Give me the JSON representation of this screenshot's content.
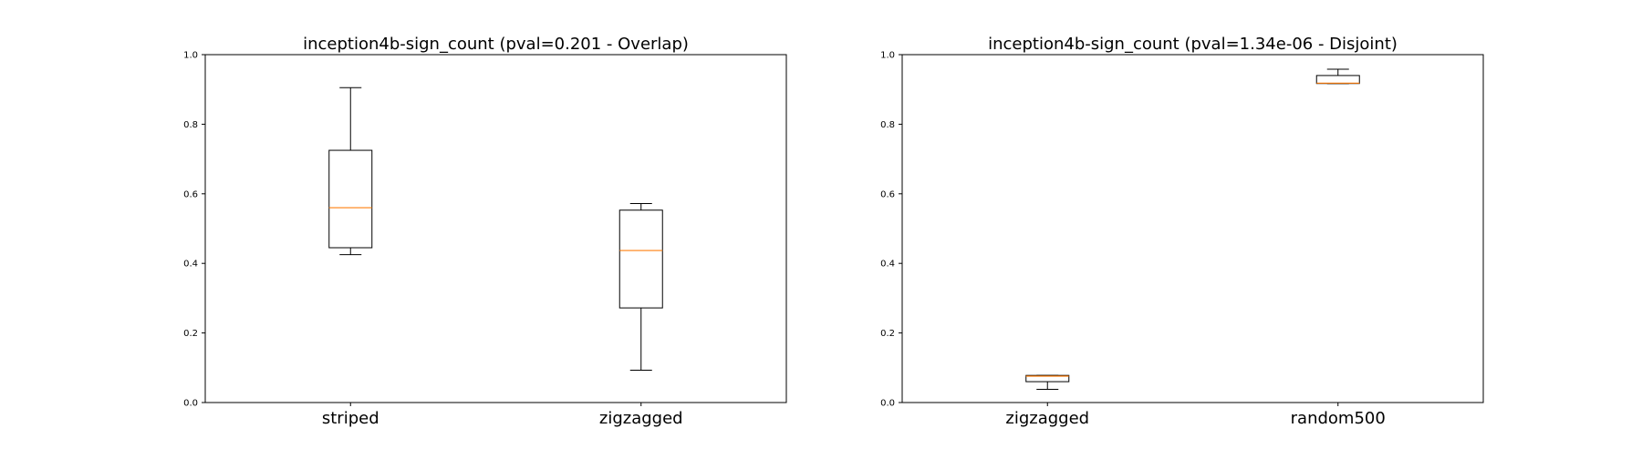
{
  "chart_data": [
    {
      "type": "boxplot",
      "title": "inception4b-sign_count (pval=0.201 - Overlap)",
      "xlabel": "",
      "ylabel": "",
      "ylim": [
        0,
        1
      ],
      "yticks": [
        "0.0",
        "0.2",
        "0.4",
        "0.6",
        "0.8",
        "1.0"
      ],
      "grid": false,
      "categories": [
        "striped",
        "zigzagged"
      ],
      "boxes": [
        {
          "label": "striped",
          "whisker_low": 0.425,
          "q1": 0.445,
          "median": 0.56,
          "q3": 0.725,
          "whisker_high": 0.905
        },
        {
          "label": "zigzagged",
          "whisker_low": 0.093,
          "q1": 0.272,
          "median": 0.437,
          "q3": 0.553,
          "whisker_high": 0.572
        }
      ]
    },
    {
      "type": "boxplot",
      "title": "inception4b-sign_count (pval=1.34e-06 - Disjoint)",
      "xlabel": "",
      "ylabel": "",
      "ylim": [
        0,
        1
      ],
      "yticks": [
        "0.0",
        "0.2",
        "0.4",
        "0.6",
        "0.8",
        "1.0"
      ],
      "grid": false,
      "categories": [
        "zigzagged",
        "random500"
      ],
      "boxes": [
        {
          "label": "zigzagged",
          "whisker_low": 0.038,
          "q1": 0.06,
          "median": 0.076,
          "q3": 0.078,
          "whisker_high": 0.078
        },
        {
          "label": "random500",
          "whisker_low": 0.917,
          "q1": 0.917,
          "median": 0.918,
          "q3": 0.94,
          "whisker_high": 0.958
        }
      ]
    }
  ],
  "colors": {
    "box_edge": "#000000",
    "median": "#ff7f0e",
    "background": "#ffffff"
  }
}
